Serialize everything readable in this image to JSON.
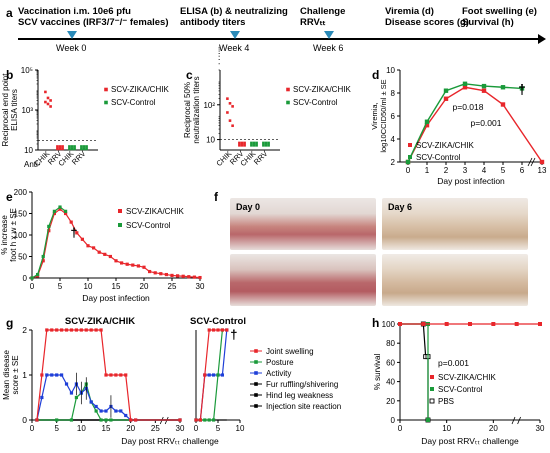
{
  "panel_a": {
    "letter": "a",
    "events": [
      {
        "text_lines": [
          "Vaccination i.m. 10e6 pfu",
          "SCV vaccines (IRF3/7⁻/⁻ females)"
        ],
        "week": "Week 0"
      },
      {
        "text_lines": [
          "ELISA (b) & neutralizing",
          "antibody titers"
        ],
        "week": "Week 4"
      },
      {
        "text_lines": [
          "Challenge",
          "RRVₜₜ"
        ],
        "week": "Week 6"
      },
      {
        "text_lines": [
          "Viremia (d)",
          "Disease scores (g)"
        ],
        "week": ""
      },
      {
        "text_lines": [
          "Foot swelling (e)",
          "Survival (h)"
        ],
        "week": ""
      }
    ]
  },
  "panel_b": {
    "letter": "b",
    "ylabel": "Reciprocal end point ELISA titers",
    "anti_label": "Anti-",
    "xticks": [
      "CHIK",
      "RRV",
      "CHIK",
      "RRV"
    ],
    "legend": [
      "SCV-ZIKA/CHIK",
      "SCV-Control"
    ]
  },
  "panel_c": {
    "letter": "c",
    "ylabel": "Reciprocal 50% neutralization titers",
    "xticks": [
      "CHIK",
      "RRV",
      "CHIK",
      "RRV"
    ],
    "legend": [
      "SCV-ZIKA/CHIK",
      "SCV-Control"
    ]
  },
  "panel_d": {
    "letter": "d",
    "ylabel": "Viremia, log10CCID50/ml ± SE",
    "xlabel": "Day post infection",
    "legend": [
      "SCV-ZIKA/CHIK",
      "SCV-Control"
    ],
    "annotations": [
      "p=0.018",
      "p=0.001",
      "†"
    ]
  },
  "panel_e": {
    "letter": "e",
    "ylabel": "% increase foot h x w ± SE",
    "xlabel": "Day post infection",
    "legend": [
      "SCV-ZIKA/CHIK",
      "SCV-Control"
    ],
    "dagger": "†"
  },
  "panel_f": {
    "letter": "f",
    "day_labels": [
      "Day 0",
      "Day 6"
    ]
  },
  "panel_g": {
    "letter": "g",
    "title_left": "SCV-ZIKA/CHIK",
    "title_right": "SCV-Control",
    "ylabel": "Mean disease score ± SE",
    "xlabel": "Day post RRVₜₜ challenge",
    "legend": [
      "Joint swelling",
      "Posture",
      "Activity",
      "Fur ruffling/shivering",
      "Hind leg weakness",
      "Injection site reaction"
    ],
    "dagger": "†"
  },
  "panel_h": {
    "letter": "h",
    "ylabel": "% survival",
    "xlabel": "Day post RRVₜₜ challenge",
    "legend": [
      "SCV-ZIKA/CHIK",
      "SCV-Control",
      "PBS"
    ],
    "pvalue": "p=0.001"
  },
  "colors": {
    "red": "#e8262b",
    "green": "#1a9a3a",
    "blue": "#1f3fd8",
    "black": "#000000"
  },
  "chart_data": [
    {
      "panel": "b",
      "type": "scatter",
      "yscale": "log",
      "ylim": [
        10,
        100000
      ],
      "yticks": [
        "10",
        "10³",
        "10⁵"
      ],
      "categories": [
        "CHIK",
        "RRV",
        "CHIK",
        "RRV"
      ],
      "series": [
        {
          "name": "SCV-ZIKA/CHIK",
          "x": [
            "CHIK",
            "CHIK",
            "CHIK",
            "CHIK",
            "CHIK",
            "CHIK",
            "RRV",
            "RRV",
            "RRV",
            "RRV",
            "RRV",
            "RRV"
          ],
          "values": [
            8000,
            4000,
            3000,
            2500,
            2000,
            1500,
            15,
            15,
            15,
            15,
            15,
            15
          ]
        },
        {
          "name": "SCV-Control",
          "x": [
            "CHIK",
            "CHIK",
            "CHIK",
            "CHIK",
            "CHIK",
            "CHIK",
            "RRV",
            "RRV",
            "RRV",
            "RRV",
            "RRV",
            "RRV"
          ],
          "values": [
            15,
            15,
            15,
            15,
            15,
            15,
            15,
            15,
            15,
            15,
            15,
            15
          ]
        }
      ]
    },
    {
      "panel": "c",
      "type": "scatter",
      "yscale": "log",
      "ylim": [
        10,
        1000
      ],
      "yticks": [
        "10",
        "10²"
      ],
      "categories": [
        "CHIK",
        "RRV",
        "CHIK",
        "RRV"
      ],
      "series": [
        {
          "name": "SCV-ZIKA/CHIK",
          "x": [
            "CHIK",
            "CHIK",
            "CHIK",
            "CHIK",
            "CHIK",
            "CHIK",
            "RRV",
            "RRV",
            "RRV",
            "RRV",
            "RRV",
            "RRV"
          ],
          "values": [
            150,
            110,
            90,
            60,
            35,
            25,
            8,
            8,
            8,
            8,
            8,
            8
          ]
        },
        {
          "name": "SCV-Control",
          "x": [
            "CHIK",
            "CHIK",
            "CHIK",
            "CHIK",
            "CHIK",
            "CHIK",
            "RRV",
            "RRV",
            "RRV",
            "RRV",
            "RRV",
            "RRV"
          ],
          "values": [
            8,
            8,
            8,
            8,
            8,
            8,
            8,
            8,
            8,
            8,
            8,
            8
          ]
        }
      ]
    },
    {
      "panel": "d",
      "type": "line",
      "ylim": [
        2,
        10
      ],
      "yticks": [
        2,
        4,
        6,
        8,
        10
      ],
      "x": [
        0,
        1,
        2,
        3,
        4,
        5,
        6,
        13
      ],
      "xticks": [
        "0",
        "1",
        "2",
        "3",
        "4",
        "5",
        "6",
        "13"
      ],
      "series": [
        {
          "name": "SCV-ZIKA/CHIK",
          "x": [
            0,
            1,
            2,
            3,
            4,
            5,
            13
          ],
          "values": [
            2,
            5.2,
            7.5,
            8.5,
            8.2,
            7,
            2
          ]
        },
        {
          "name": "SCV-Control",
          "x": [
            0,
            1,
            2,
            3,
            4,
            5,
            6
          ],
          "values": [
            2,
            5.5,
            8.2,
            8.8,
            8.6,
            8.5,
            8.4
          ]
        }
      ]
    },
    {
      "panel": "e",
      "type": "line",
      "xlim": [
        0,
        30
      ],
      "ylim": [
        0,
        200
      ],
      "xticks": [
        0,
        5,
        10,
        15,
        20,
        25,
        30
      ],
      "yticks": [
        0,
        50,
        100,
        150,
        200
      ],
      "series": [
        {
          "name": "SCV-ZIKA/CHIK",
          "x": [
            0,
            1,
            2,
            3,
            4,
            5,
            6,
            7,
            8,
            9,
            10,
            11,
            12,
            13,
            14,
            15,
            16,
            17,
            18,
            19,
            20,
            21,
            22,
            23,
            24,
            25,
            26,
            27,
            28,
            29,
            30
          ],
          "values": [
            0,
            5,
            40,
            110,
            150,
            160,
            150,
            130,
            105,
            90,
            75,
            70,
            60,
            55,
            50,
            40,
            35,
            32,
            30,
            28,
            25,
            15,
            12,
            10,
            8,
            6,
            5,
            4,
            3,
            2,
            1
          ]
        },
        {
          "name": "SCV-Control",
          "x": [
            0,
            1,
            2,
            3,
            4,
            5,
            6
          ],
          "values": [
            0,
            8,
            50,
            120,
            155,
            165,
            155
          ]
        }
      ]
    },
    {
      "panel": "g-left",
      "type": "line",
      "xlim": [
        0,
        30
      ],
      "ylim": [
        0,
        2
      ],
      "xticks": [
        0,
        5,
        10,
        15,
        20,
        25,
        30
      ],
      "yticks": [
        0,
        1,
        2
      ],
      "series": [
        {
          "name": "Joint swelling",
          "x": [
            1,
            2,
            3,
            4,
            5,
            6,
            7,
            8,
            9,
            10,
            11,
            12,
            13,
            14,
            15,
            16,
            17,
            18,
            19,
            20,
            21,
            30
          ],
          "values": [
            0,
            1,
            2,
            2,
            2,
            2,
            2,
            2,
            2,
            2,
            2,
            2,
            2,
            2,
            1,
            1,
            1,
            1,
            1,
            0,
            0,
            0
          ]
        },
        {
          "name": "Posture",
          "x": [
            1,
            5,
            8,
            9,
            10,
            11,
            12,
            13,
            14,
            15,
            16,
            30
          ],
          "values": [
            0,
            0,
            0,
            0.5,
            0.6,
            0.8,
            0.4,
            0.2,
            0,
            0,
            0,
            0
          ]
        },
        {
          "name": "Activity",
          "x": [
            1,
            2,
            3,
            4,
            5,
            6,
            7,
            8,
            9,
            10,
            11,
            12,
            13,
            14,
            15,
            16,
            17,
            18,
            19,
            20,
            21,
            30
          ],
          "values": [
            0,
            0.5,
            1,
            1,
            1,
            1,
            0.8,
            0.6,
            0.8,
            0.6,
            0.7,
            0.4,
            0.3,
            0.2,
            0.2,
            0.3,
            0.2,
            0.2,
            0.1,
            0,
            0,
            0
          ]
        },
        {
          "name": "Fur ruffling/shivering",
          "x": [
            1,
            30
          ],
          "values": [
            0,
            0
          ]
        },
        {
          "name": "Hind leg weakness",
          "x": [
            1,
            30
          ],
          "values": [
            0,
            0
          ]
        },
        {
          "name": "Injection site reaction",
          "x": [
            1,
            30
          ],
          "values": [
            0,
            0
          ]
        }
      ]
    },
    {
      "panel": "g-right",
      "type": "line",
      "xlim": [
        0,
        10
      ],
      "ylim": [
        0,
        2
      ],
      "xticks": [
        0,
        5,
        10
      ],
      "series": [
        {
          "name": "Joint swelling",
          "x": [
            0,
            1,
            2,
            3,
            4,
            5,
            6,
            7
          ],
          "values": [
            0,
            0,
            1,
            2,
            2,
            2,
            2,
            2
          ]
        },
        {
          "name": "Posture",
          "x": [
            0,
            1,
            2,
            3,
            4,
            5,
            6
          ],
          "values": [
            0,
            0,
            0,
            0,
            0,
            1,
            2
          ]
        },
        {
          "name": "Activity",
          "x": [
            0,
            1,
            2,
            3,
            4,
            5,
            6,
            7
          ],
          "values": [
            0,
            0,
            1,
            1,
            1,
            1,
            1,
            2
          ]
        },
        {
          "name": "Fur ruffling/shivering",
          "x": [
            0,
            7
          ],
          "values": [
            0,
            0
          ]
        }
      ]
    },
    {
      "panel": "h",
      "type": "line",
      "xlim": [
        0,
        30
      ],
      "ylim": [
        0,
        100
      ],
      "xticks": [
        0,
        10,
        20,
        30
      ],
      "yticks": [
        0,
        20,
        40,
        60,
        80,
        100
      ],
      "series": [
        {
          "name": "SCV-ZIKA/CHIK",
          "x": [
            0,
            5,
            10,
            15,
            20,
            25,
            30
          ],
          "values": [
            100,
            100,
            100,
            100,
            100,
            100,
            100
          ]
        },
        {
          "name": "SCV-Control",
          "x": [
            0,
            5,
            6,
            6
          ],
          "values": [
            100,
            100,
            100,
            0
          ]
        },
        {
          "name": "PBS",
          "x": [
            0,
            5,
            5.5,
            6,
            6
          ],
          "values": [
            100,
            100,
            66,
            66,
            0
          ]
        }
      ]
    }
  ]
}
